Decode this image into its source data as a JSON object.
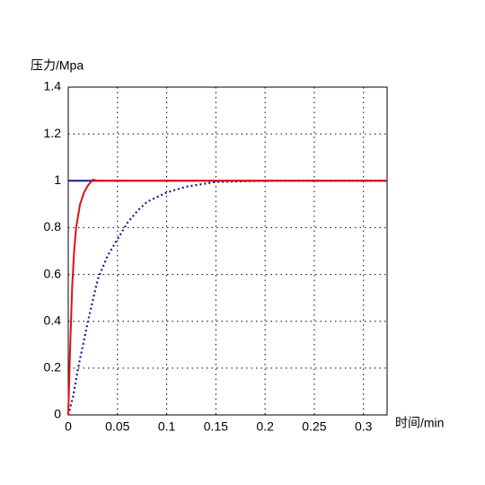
{
  "chart_data": {
    "type": "line",
    "ylabel": "压力/Mpa",
    "xlabel": "时间/min",
    "xlim": [
      0,
      0.324
    ],
    "ylim": [
      0,
      1.4
    ],
    "xticks": [
      0,
      0.05,
      0.1,
      0.15,
      0.2,
      0.25,
      0.3
    ],
    "yticks": [
      0,
      0.2,
      0.4,
      0.6,
      0.8,
      1,
      1.2,
      1.4
    ],
    "grid": true,
    "series": [
      {
        "color": "#1a1a8c",
        "style": "solid",
        "x": [
          0,
          0.324
        ],
        "values": [
          1,
          1
        ]
      },
      {
        "color": "#1a1a8c",
        "style": "dotted",
        "x": [
          0,
          0.005,
          0.01,
          0.02,
          0.03,
          0.04,
          0.05,
          0.06,
          0.07,
          0.08,
          0.1,
          0.12,
          0.15,
          0.2,
          0.324
        ],
        "values": [
          0,
          0.08,
          0.2,
          0.4,
          0.58,
          0.68,
          0.75,
          0.82,
          0.87,
          0.91,
          0.95,
          0.975,
          0.995,
          1,
          1
        ]
      },
      {
        "color": "#e01010",
        "style": "solid",
        "x": [
          0,
          0.002,
          0.004,
          0.006,
          0.008,
          0.012,
          0.016,
          0.02,
          0.025,
          0.03,
          0.324
        ],
        "values": [
          0,
          0.3,
          0.55,
          0.7,
          0.8,
          0.9,
          0.95,
          0.98,
          1.005,
          1,
          1
        ]
      }
    ]
  }
}
